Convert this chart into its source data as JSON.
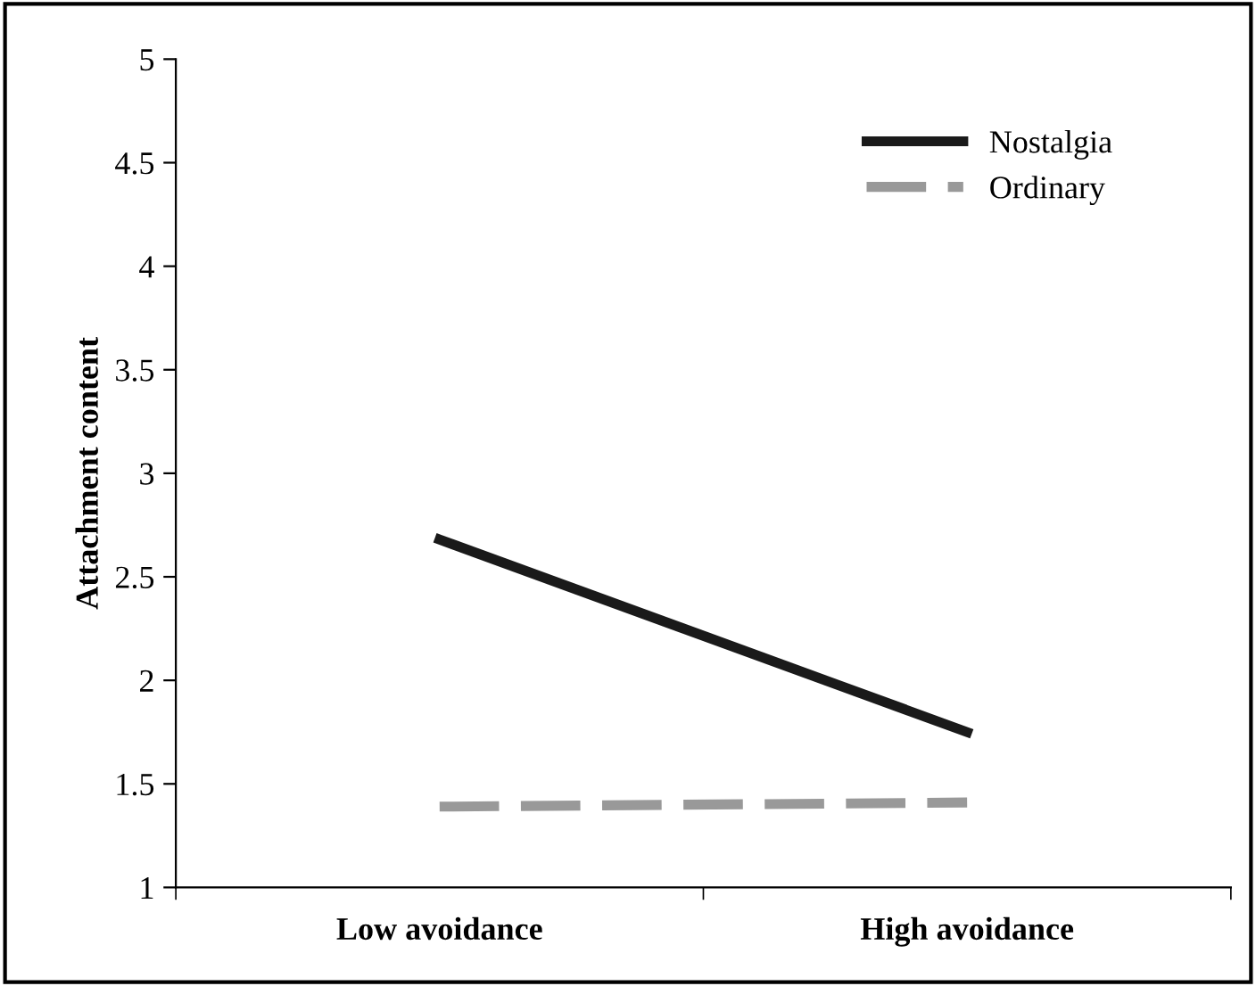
{
  "chart_data": {
    "type": "line",
    "ylabel": "Attachment content",
    "categories": [
      "Low avoidance",
      "High avoidance"
    ],
    "series": [
      {
        "name": "Nostalgia",
        "color": "#1a1a1a",
        "values": [
          2.68,
          1.75
        ],
        "line_style": "solid"
      },
      {
        "name": "Ordinary",
        "color": "#999999",
        "values": [
          1.39,
          1.41
        ],
        "line_style": "dashed"
      }
    ],
    "ylim": [
      1,
      5
    ],
    "yticks": [
      1,
      1.5,
      2,
      2.5,
      3,
      3.5,
      4,
      4.5,
      5
    ],
    "grid": false,
    "legend": "top right",
    "marker": "none"
  }
}
